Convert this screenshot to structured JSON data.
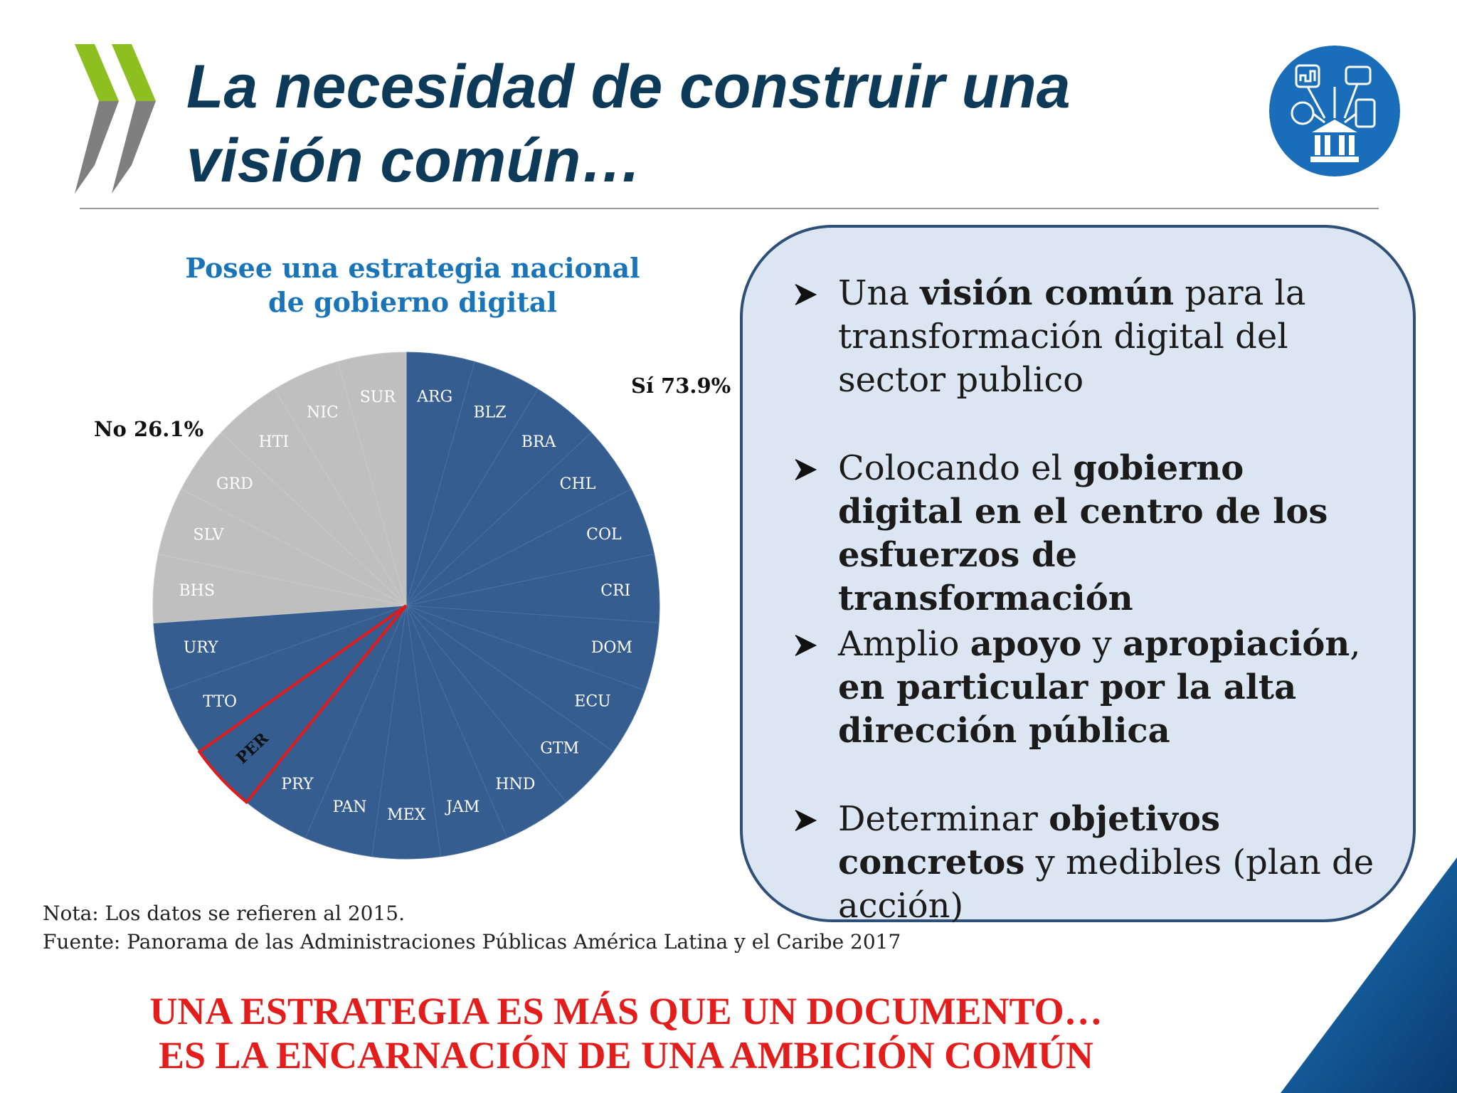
{
  "title": "La necesidad de construir una visión común…",
  "colors": {
    "title": "#0e3a5a",
    "chart_title": "#1a74b8",
    "si_slice": "#355d8f",
    "no_slice": "#bfbfbf",
    "highlight": "#e01b1b",
    "callout_bg": "#dce6f2",
    "callout_border": "#2e4f78",
    "tagline": "#e31c1c",
    "logo_green": "#8cbf1f",
    "logo_gray": "#7f7f7f",
    "badge_blue": "#1a6db8"
  },
  "icons": {
    "logo": "oecd-chevrons-logo",
    "badge": "digital-government-icon",
    "bullet": "arrow-bullet-icon"
  },
  "chart_data": {
    "type": "pie",
    "title_lines": [
      "Posee una estrategia nacional",
      "de gobierno digital"
    ],
    "categories": [
      "Sí",
      "No"
    ],
    "values": [
      73.9,
      26.1
    ],
    "labels": [
      "Sí 73.9%",
      "No  26.1%"
    ],
    "countries": {
      "si": [
        "ARG",
        "BLZ",
        "BRA",
        "CHL",
        "COL",
        "CRI",
        "DOM",
        "ECU",
        "GTM",
        "HND",
        "JAM",
        "MEX",
        "PAN",
        "PRY",
        "PER",
        "TTO",
        "URY"
      ],
      "no": [
        "BHS",
        "SLV",
        "GRD",
        "HTI",
        "NIC",
        "SUR"
      ]
    },
    "highlighted_country": "PER"
  },
  "bullets": [
    {
      "runs": [
        {
          "t": "Una ",
          "b": false
        },
        {
          "t": "visión común",
          "b": true
        },
        {
          "t": " para la transformación digital del sector publico",
          "b": false
        }
      ]
    },
    {
      "runs": [
        {
          "t": "Colocando el ",
          "b": false
        },
        {
          "t": "gobierno digital en el centro de los esfuerzos de transformación",
          "b": true
        }
      ]
    },
    {
      "runs": [
        {
          "t": "Amplio ",
          "b": false
        },
        {
          "t": "apoyo",
          "b": true
        },
        {
          "t": " y ",
          "b": false
        },
        {
          "t": "apropiación",
          "b": true
        },
        {
          "t": ", ",
          "b": false
        },
        {
          "t": "en particular por la alta dirección pública",
          "b": true
        }
      ]
    },
    {
      "runs": [
        {
          "t": "Determinar ",
          "b": false
        },
        {
          "t": "objetivos concretos",
          "b": true
        },
        {
          "t": " y medibles (plan de acción)",
          "b": false
        }
      ]
    }
  ],
  "note": "Nota: Los datos se refieren al 2015.",
  "source": "Fuente: Panorama de las Administraciones Públicas América Latina y el Caribe 2017",
  "tagline": [
    "UNA ESTRATEGIA ES MÁS QUE UN DOCUMENTO…",
    "ES LA ENCARNACIÓN DE UNA AMBICIÓN COMÚN"
  ]
}
